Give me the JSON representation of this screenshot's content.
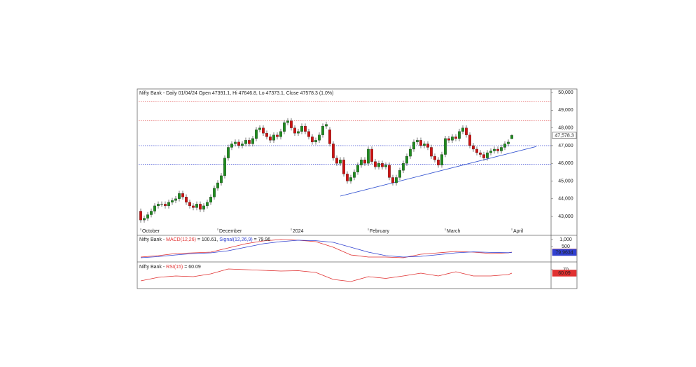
{
  "chart_data": [
    {
      "type": "candlestick",
      "title": "Nifty Bank - Daily 01/04/24 Open 47391.1, Hi 47646.8, Lo 47373.1, Close 47578.3 (1.0%)",
      "categories": [
        "October",
        null,
        null,
        null,
        null,
        null,
        null,
        null,
        null,
        null,
        null,
        null,
        null,
        null,
        null,
        null,
        null,
        null,
        null,
        null,
        null,
        null,
        "December",
        null,
        null,
        null,
        null,
        null,
        null,
        null,
        null,
        null,
        null,
        null,
        null,
        null,
        null,
        null,
        null,
        null,
        null,
        null,
        null,
        "2024",
        null,
        null,
        null,
        null,
        null,
        null,
        null,
        null,
        null,
        null,
        null,
        null,
        null,
        null,
        null,
        null,
        null,
        null,
        null,
        null,
        null,
        "February",
        null,
        null,
        null,
        null,
        null,
        null,
        null,
        null,
        null,
        null,
        null,
        null,
        null,
        null,
        null,
        null,
        null,
        null,
        null,
        null,
        null,
        "March",
        null,
        null,
        null,
        null,
        null,
        null,
        null,
        null,
        null,
        null,
        null,
        null,
        null,
        null,
        null,
        null,
        null,
        null,
        "April"
      ],
      "open": [
        43300,
        42800,
        42900,
        43100,
        43300,
        43600,
        43700,
        43700,
        43600,
        43800,
        43900,
        44000,
        44300,
        44100,
        43800,
        43600,
        43500,
        43700,
        43400,
        43600,
        43800,
        44100,
        44600,
        44900,
        45300,
        46300,
        46900,
        47100,
        47200,
        47000,
        47100,
        47300,
        47100,
        47400,
        47900,
        48000,
        47700,
        47500,
        47300,
        47600,
        47500,
        47800,
        48300,
        48400,
        48000,
        47700,
        47800,
        48100,
        47800,
        47500,
        47200,
        47300,
        47600,
        48100,
        47900,
        47100,
        46300,
        46000,
        46200,
        45400,
        45000,
        45200,
        45500,
        45900,
        46200,
        46000,
        46800,
        46100,
        45800,
        46000,
        45800,
        45900,
        45200,
        44900,
        45200,
        45600,
        46000,
        46400,
        46800,
        47200,
        47300,
        47000,
        47100,
        46900,
        46400,
        46200,
        45900,
        46500,
        47400,
        47300,
        47500,
        47400,
        47800,
        48000,
        47600,
        47000,
        46800,
        46600,
        46500,
        46300,
        46600,
        46700,
        46800,
        46700,
        46900,
        47100,
        47391.1
      ],
      "high": [
        43450,
        43050,
        43250,
        43450,
        43750,
        43850,
        43850,
        43850,
        43950,
        44050,
        44150,
        44450,
        44450,
        44250,
        43950,
        43750,
        43850,
        43850,
        43750,
        43950,
        44250,
        44750,
        45050,
        45450,
        46450,
        47050,
        47250,
        47350,
        47350,
        47250,
        47450,
        47450,
        47550,
        48050,
        48150,
        48150,
        47850,
        47650,
        47750,
        47750,
        47950,
        48450,
        48550,
        48550,
        48150,
        47950,
        48250,
        48250,
        47950,
        47650,
        47450,
        47750,
        48250,
        48350,
        48050,
        47250,
        46450,
        46350,
        46350,
        45550,
        45350,
        45650,
        46050,
        46350,
        46350,
        46950,
        46950,
        46250,
        46150,
        46150,
        46050,
        46050,
        45350,
        45350,
        45750,
        46150,
        46550,
        46950,
        47350,
        47450,
        47450,
        47250,
        47250,
        47050,
        46550,
        46350,
        46650,
        47550,
        47550,
        47650,
        47650,
        47950,
        48150,
        48150,
        47750,
        47150,
        46950,
        46750,
        46650,
        46750,
        46850,
        46950,
        46950,
        47050,
        47250,
        47350,
        47646.8
      ],
      "low": [
        42650,
        42650,
        42750,
        42950,
        43150,
        43450,
        43550,
        43450,
        43450,
        43650,
        43750,
        43850,
        43950,
        43650,
        43450,
        43350,
        43350,
        43250,
        43250,
        43450,
        43650,
        43950,
        44450,
        44750,
        45150,
        46150,
        46750,
        46950,
        46850,
        46850,
        46950,
        46950,
        46950,
        47250,
        47750,
        47550,
        47350,
        47150,
        47150,
        47350,
        47350,
        47650,
        48150,
        47850,
        47550,
        47550,
        47650,
        47650,
        47350,
        47050,
        47050,
        47150,
        47450,
        47950,
        46950,
        46150,
        45850,
        45850,
        45250,
        44850,
        44850,
        45050,
        45350,
        45750,
        45850,
        45850,
        45950,
        45650,
        45650,
        45650,
        45650,
        45050,
        44750,
        44750,
        45050,
        45450,
        45850,
        46250,
        46650,
        47050,
        46850,
        46850,
        46750,
        46250,
        46050,
        45750,
        45750,
        46350,
        47150,
        47150,
        47250,
        47250,
        47650,
        47450,
        46850,
        46650,
        46450,
        46350,
        46150,
        46150,
        46450,
        46550,
        46550,
        46550,
        46750,
        46950,
        47373.1
      ],
      "close": [
        42800,
        42900,
        43100,
        43300,
        43600,
        43700,
        43700,
        43600,
        43800,
        43900,
        44000,
        44300,
        44100,
        43800,
        43600,
        43500,
        43700,
        43400,
        43600,
        43800,
        44100,
        44600,
        44900,
        45300,
        46300,
        46900,
        47100,
        47200,
        47000,
        47100,
        47300,
        47100,
        47400,
        47900,
        48000,
        47700,
        47500,
        47300,
        47600,
        47500,
        47800,
        48300,
        48400,
        48000,
        47700,
        47800,
        48100,
        47800,
        47500,
        47200,
        47300,
        47600,
        48100,
        48200,
        47100,
        46300,
        46000,
        46200,
        45400,
        45000,
        45200,
        45500,
        45900,
        46200,
        46000,
        46800,
        46100,
        45800,
        46000,
        45800,
        45900,
        45200,
        44900,
        45200,
        45600,
        46000,
        46400,
        46800,
        47200,
        47300,
        47000,
        47100,
        46900,
        46400,
        46200,
        45900,
        46500,
        47400,
        47300,
        47500,
        47400,
        47800,
        48000,
        47600,
        47000,
        46800,
        46600,
        46500,
        46300,
        46600,
        46700,
        46800,
        46700,
        46900,
        47100,
        47200,
        47578.3
      ],
      "up_color": "#1e8c1e",
      "down_color": "#d01010",
      "price_label": "47,578.3",
      "hlines": [
        {
          "value": 49500,
          "color": "#e04040"
        },
        {
          "value": 48400,
          "color": "#e04040"
        },
        {
          "value": 47000,
          "color": "#3040d0"
        },
        {
          "value": 45950,
          "color": "#3040d0"
        }
      ],
      "trendline": {
        "x": [
          57,
          113
        ],
        "values": [
          44150,
          46950
        ],
        "color": "#3050d0"
      },
      "xlim": [
        -0.6,
        117.2
      ],
      "ylim": [
        42370,
        50200
      ],
      "yticks": [
        {
          "value": 43000,
          "label": "43,000"
        },
        {
          "value": 44000,
          "label": "44,000"
        },
        {
          "value": 45000,
          "label": "45,000"
        },
        {
          "value": 46000,
          "label": "46,000"
        },
        {
          "value": 47000,
          "label": "47,000"
        },
        {
          "value": 48000,
          "label": "48,000"
        },
        {
          "value": 49000,
          "label": "49,000"
        },
        {
          "value": 50000,
          "label": "50,000"
        }
      ]
    },
    {
      "type": "line",
      "title": "Nifty Bank - ",
      "x": [
        0,
        5,
        10,
        15,
        20,
        25,
        30,
        35,
        40,
        45,
        50,
        55,
        60,
        65,
        70,
        75,
        80,
        85,
        90,
        95,
        100,
        105,
        106
      ],
      "series": [
        {
          "name": "MACD(12,26)",
          "legend_text": " = 100.61, ",
          "end_label": "100.61",
          "color": "#e03030",
          "values": [
            -250,
            -150,
            0,
            50,
            100,
            400,
            700,
            900,
            1000,
            950,
            850,
            450,
            -100,
            -250,
            -250,
            -300,
            -50,
            50,
            150,
            100,
            0,
            50,
            100.61
          ]
        },
        {
          "name": "Signal(12,26,9)",
          "legend_text": " = 79.96",
          "end_label": "79.9634",
          "color": "#3040d0",
          "values": [
            -300,
            -220,
            -100,
            0,
            50,
            200,
            450,
            700,
            850,
            950,
            920,
            800,
            450,
            100,
            -150,
            -250,
            -200,
            -80,
            50,
            120,
            80,
            60,
            79.96
          ]
        }
      ],
      "xlim": [
        -0.6,
        117.2
      ],
      "ylim": [
        -500,
        1250
      ],
      "yticks": [
        {
          "value": 1000,
          "label": "1,000"
        },
        500
      ]
    },
    {
      "type": "line",
      "title": "Nifty Bank - ",
      "x": [
        0,
        5,
        10,
        15,
        20,
        25,
        30,
        35,
        40,
        45,
        50,
        55,
        60,
        65,
        70,
        75,
        80,
        85,
        90,
        95,
        100,
        105,
        106
      ],
      "series": [
        {
          "name": "RSI(15)",
          "legend_text": " = 60.09",
          "end_label": "60.09",
          "color": "#e03030",
          "values": [
            38,
            48,
            52,
            50,
            58,
            72,
            70,
            68,
            66,
            67,
            62,
            42,
            36,
            50,
            45,
            52,
            60,
            52,
            64,
            52,
            52,
            56,
            60.09
          ]
        }
      ],
      "xlim": [
        -0.6,
        117.2
      ],
      "ylim": [
        20,
        88
      ],
      "yticks": [
        70
      ]
    }
  ]
}
